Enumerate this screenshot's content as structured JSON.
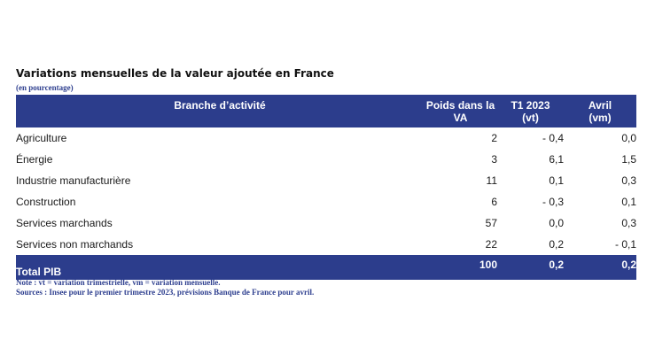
{
  "title": "Variations mensuelles de la valeur ajoutée en France",
  "subtitle": "(en pourcentage)",
  "table": {
    "headers": {
      "branch": "Branche d’activité",
      "poids": "Poids dans la\nVA",
      "t1": "T1 2023\n(vt)",
      "avril": "Avril\n(vm)"
    },
    "rows": [
      {
        "branch": "Agriculture",
        "poids": "2",
        "t1": "- 0,4",
        "avril": "0,0"
      },
      {
        "branch": "Énergie",
        "poids": "3",
        "t1": "6,1",
        "avril": "1,5"
      },
      {
        "branch": "Industrie manufacturière",
        "poids": "11",
        "t1": "0,1",
        "avril": "0,3"
      },
      {
        "branch": "Construction",
        "poids": "6",
        "t1": "- 0,3",
        "avril": "0,1"
      },
      {
        "branch": "Services marchands",
        "poids": "57",
        "t1": "0,0",
        "avril": "0,3"
      },
      {
        "branch": "Services non marchands",
        "poids": "22",
        "t1": "0,2",
        "avril": "- 0,1"
      }
    ],
    "total": {
      "branch": "Total PIB",
      "poids": "100",
      "t1": "0,2",
      "avril": "0,2"
    }
  },
  "notes": {
    "note": "Note : vt = variation trimestrielle, vm = variation mensuelle.",
    "sources": "Sources : Insee pour le premier trimestre 2023, prévisions Banque de France pour avril."
  },
  "colors": {
    "header_bg": "#2c3d8c",
    "header_text": "#ffffff",
    "note_text": "#2e3f8f"
  }
}
